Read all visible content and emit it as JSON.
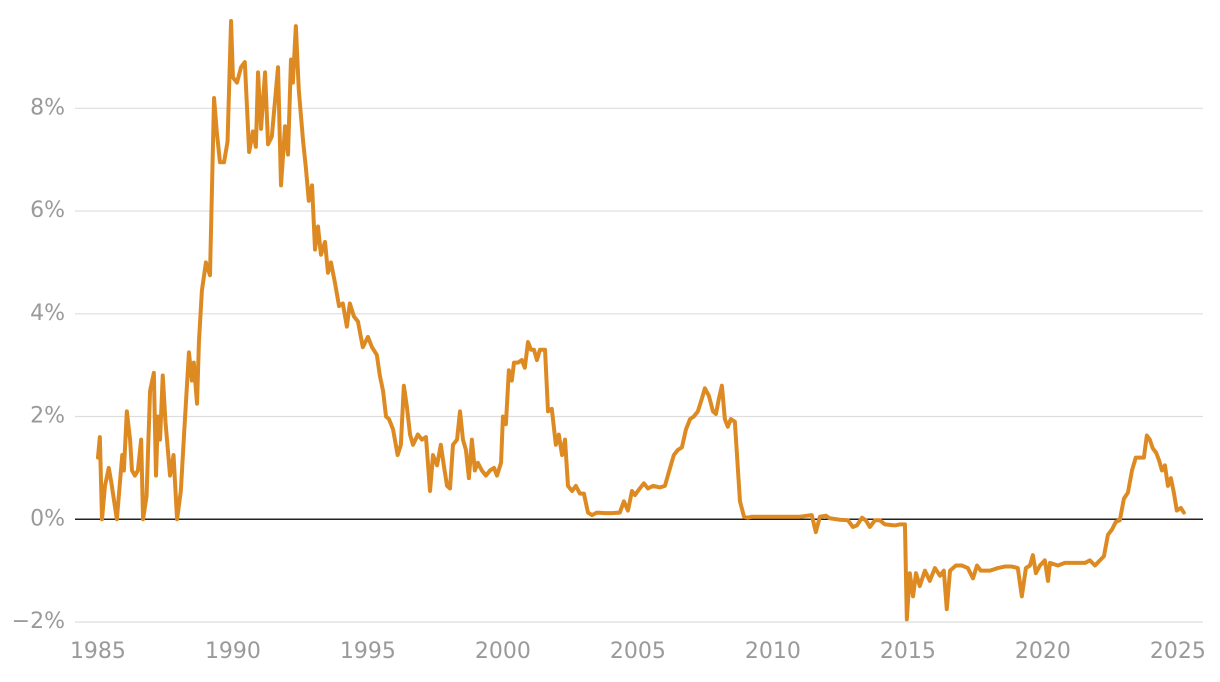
{
  "chart_data": {
    "type": "line",
    "color": "#de8a22",
    "grid": true,
    "zero_line": true,
    "xlim": [
      1984.15,
      2025.93
    ],
    "ylim": [
      -2,
      9.7
    ],
    "xticks": [
      1985,
      1990,
      1995,
      2000,
      2005,
      2010,
      2015,
      2020,
      2025
    ],
    "yticks": [
      {
        "value": -2,
        "label": "−2%"
      },
      {
        "value": 0,
        "label": "0%"
      },
      {
        "value": 2,
        "label": "2%"
      },
      {
        "value": 4,
        "label": "4%"
      },
      {
        "value": 6,
        "label": "6%"
      },
      {
        "value": 8,
        "label": "8%"
      }
    ],
    "x": [
      1985.0,
      1985.07,
      1985.15,
      1985.26,
      1985.4,
      1985.5,
      1985.7,
      1985.9,
      1985.96,
      1986.07,
      1986.19,
      1986.26,
      1986.37,
      1986.48,
      1986.6,
      1986.67,
      1986.8,
      1986.93,
      1987.07,
      1987.15,
      1987.22,
      1987.3,
      1987.4,
      1987.5,
      1987.67,
      1987.8,
      1987.93,
      1988.07,
      1988.2,
      1988.37,
      1988.48,
      1988.55,
      1988.67,
      1988.74,
      1988.85,
      1989.0,
      1989.15,
      1989.3,
      1989.4,
      1989.52,
      1989.67,
      1989.8,
      1989.93,
      1990.0,
      1990.15,
      1990.3,
      1990.44,
      1990.6,
      1990.74,
      1990.85,
      1990.93,
      1991.04,
      1991.19,
      1991.3,
      1991.44,
      1991.67,
      1991.78,
      1991.93,
      1992.04,
      1992.15,
      1992.22,
      1992.33,
      1992.44,
      1992.6,
      1992.7,
      1992.81,
      1992.93,
      1993.04,
      1993.15,
      1993.26,
      1993.41,
      1993.52,
      1993.63,
      1993.78,
      1993.93,
      1994.07,
      1994.22,
      1994.33,
      1994.48,
      1994.63,
      1994.81,
      1995.0,
      1995.15,
      1995.33,
      1995.44,
      1995.56,
      1995.67,
      1995.78,
      1995.93,
      1996.1,
      1996.22,
      1996.33,
      1996.44,
      1996.56,
      1996.67,
      1996.85,
      1997.0,
      1997.15,
      1997.3,
      1997.41,
      1997.56,
      1997.7,
      1997.81,
      1997.93,
      1998.04,
      1998.15,
      1998.3,
      1998.41,
      1998.52,
      1998.63,
      1998.74,
      1998.85,
      1998.96,
      1999.07,
      1999.22,
      1999.37,
      1999.52,
      1999.67,
      1999.78,
      1999.93,
      2000.0,
      2000.11,
      2000.22,
      2000.33,
      2000.41,
      2000.56,
      2000.7,
      2000.81,
      2000.93,
      2001.04,
      2001.15,
      2001.26,
      2001.37,
      2001.56,
      2001.67,
      2001.81,
      2001.96,
      2002.07,
      2002.19,
      2002.3,
      2002.41,
      2002.56,
      2002.7,
      2002.85,
      2003.0,
      2003.15,
      2003.3,
      2003.48,
      2003.78,
      2004.04,
      2004.33,
      2004.48,
      2004.63,
      2004.78,
      2004.89,
      2005.07,
      2005.22,
      2005.37,
      2005.56,
      2005.81,
      2006.0,
      2006.19,
      2006.33,
      2006.48,
      2006.63,
      2006.78,
      2006.93,
      2007.07,
      2007.22,
      2007.37,
      2007.48,
      2007.63,
      2007.78,
      2007.89,
      2008.0,
      2008.11,
      2008.22,
      2008.33,
      2008.44,
      2008.59,
      2008.78,
      2008.93,
      2009.07,
      2009.22,
      2010.26,
      2011.0,
      2011.44,
      2011.59,
      2011.74,
      2011.96,
      2012.1,
      2012.48,
      2012.78,
      2012.96,
      2013.11,
      2013.3,
      2013.44,
      2013.59,
      2013.78,
      2013.96,
      2014.15,
      2014.52,
      2014.7,
      2014.89,
      2014.96,
      2015.07,
      2015.19,
      2015.3,
      2015.44,
      2015.63,
      2015.81,
      2016.0,
      2016.19,
      2016.33,
      2016.44,
      2016.56,
      2016.78,
      2017.0,
      2017.22,
      2017.41,
      2017.56,
      2017.7,
      2018.04,
      2018.33,
      2018.59,
      2018.85,
      2019.07,
      2019.22,
      2019.37,
      2019.52,
      2019.63,
      2019.74,
      2019.89,
      2020.07,
      2020.19,
      2020.26,
      2020.56,
      2020.81,
      2021.19,
      2021.56,
      2021.74,
      2021.93,
      2022.11,
      2022.26,
      2022.41,
      2022.56,
      2022.7,
      2022.85,
      2023.0,
      2023.15,
      2023.3,
      2023.44,
      2023.59,
      2023.74,
      2023.85,
      2023.96,
      2024.07,
      2024.19,
      2024.3,
      2024.41,
      2024.52,
      2024.63,
      2024.74,
      2024.85,
      2024.96,
      2025.11,
      2025.22
    ],
    "values": [
      1.2,
      1.6,
      0.0,
      0.65,
      1.0,
      0.7,
      0.0,
      1.25,
      0.95,
      2.1,
      1.55,
      0.95,
      0.85,
      0.95,
      1.55,
      0.0,
      0.45,
      2.5,
      2.85,
      0.85,
      2.0,
      1.55,
      2.8,
      1.9,
      0.85,
      1.25,
      0.0,
      0.55,
      1.75,
      3.25,
      2.7,
      3.05,
      2.25,
      3.45,
      4.45,
      5.0,
      4.75,
      8.2,
      7.55,
      6.95,
      6.95,
      7.35,
      9.7,
      8.6,
      8.5,
      8.8,
      8.9,
      7.15,
      7.55,
      7.25,
      8.7,
      7.6,
      8.7,
      7.3,
      7.45,
      8.8,
      6.5,
      7.65,
      7.1,
      8.95,
      8.5,
      9.6,
      8.35,
      7.35,
      6.85,
      6.2,
      6.5,
      5.25,
      5.7,
      5.15,
      5.4,
      4.8,
      5.0,
      4.6,
      4.15,
      4.2,
      3.75,
      4.2,
      3.95,
      3.85,
      3.35,
      3.55,
      3.35,
      3.2,
      2.8,
      2.5,
      2.0,
      1.95,
      1.75,
      1.25,
      1.45,
      2.6,
      2.2,
      1.65,
      1.45,
      1.65,
      1.55,
      1.6,
      0.55,
      1.25,
      1.05,
      1.45,
      1.05,
      0.65,
      0.6,
      1.45,
      1.55,
      2.1,
      1.55,
      1.35,
      0.8,
      1.55,
      0.95,
      1.1,
      0.95,
      0.85,
      0.95,
      1.0,
      0.85,
      1.1,
      2.0,
      1.85,
      2.9,
      2.7,
      3.05,
      3.05,
      3.1,
      2.95,
      3.45,
      3.3,
      3.3,
      3.1,
      3.3,
      3.3,
      2.1,
      2.15,
      1.45,
      1.65,
      1.25,
      1.55,
      0.65,
      0.55,
      0.65,
      0.5,
      0.5,
      0.13,
      0.08,
      0.13,
      0.12,
      0.12,
      0.13,
      0.35,
      0.17,
      0.55,
      0.47,
      0.6,
      0.7,
      0.6,
      0.65,
      0.62,
      0.65,
      1.0,
      1.25,
      1.35,
      1.4,
      1.75,
      1.95,
      2.0,
      2.1,
      2.35,
      2.55,
      2.4,
      2.1,
      2.05,
      2.35,
      2.6,
      1.95,
      1.8,
      1.95,
      1.9,
      0.35,
      0.05,
      0.03,
      0.05,
      0.05,
      0.05,
      0.08,
      -0.25,
      0.05,
      0.07,
      0.02,
      -0.01,
      -0.02,
      -0.15,
      -0.12,
      0.03,
      -0.02,
      -0.15,
      -0.02,
      -0.02,
      -0.1,
      -0.12,
      -0.1,
      -0.1,
      -1.95,
      -1.05,
      -1.5,
      -1.05,
      -1.3,
      -1.0,
      -1.2,
      -0.95,
      -1.1,
      -1.0,
      -1.75,
      -1.0,
      -0.9,
      -0.9,
      -0.95,
      -1.15,
      -0.9,
      -1.0,
      -1.0,
      -0.95,
      -0.92,
      -0.92,
      -0.95,
      -1.5,
      -0.95,
      -0.9,
      -0.7,
      -1.05,
      -0.9,
      -0.8,
      -1.2,
      -0.85,
      -0.9,
      -0.85,
      -0.85,
      -0.85,
      -0.8,
      -0.9,
      -0.8,
      -0.72,
      -0.3,
      -0.2,
      -0.05,
      -0.02,
      0.4,
      0.52,
      0.95,
      1.2,
      1.2,
      1.2,
      1.63,
      1.55,
      1.38,
      1.3,
      1.15,
      0.95,
      1.05,
      0.65,
      0.8,
      0.52,
      0.17,
      0.22,
      0.13
    ]
  }
}
